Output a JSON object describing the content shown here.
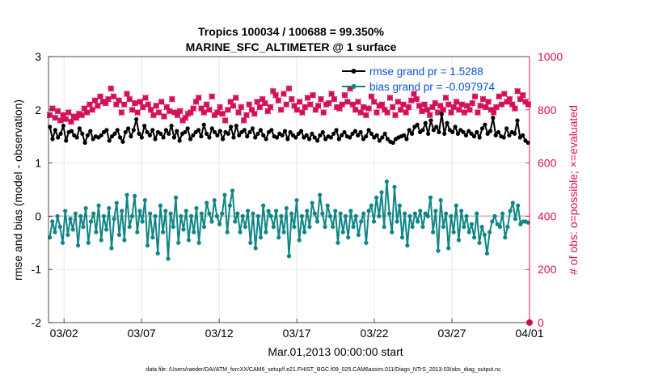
{
  "chart_data": {
    "type": "line",
    "title_line1": "Tropics 100034 / 100688 = 99.350%",
    "title_line2": "MARINE_SFC_ALTIMETER @ 1 surface",
    "xlabel": "Mar.01,2013 00:00:00 start",
    "ylabel_left": "rmse and bias (model - observation)",
    "ylabel_right": "# of obs: o=possible; ×=evaluated",
    "footer": "data file: /Users/raeder/DAI/ATM_forcXX/CAM6_setup/f.e21.FHIST_BGC.f09_025.CAM6assim.011/Diags_NTrS_2013-03/obs_diag_output.nc",
    "xlim": [
      0.0,
      31.0
    ],
    "ylim_left": [
      -2,
      3
    ],
    "ylim_right": [
      0,
      1000
    ],
    "left_ticks": [
      "-2",
      "-1",
      "0",
      "1",
      "2",
      "3"
    ],
    "right_ticks": [
      "0",
      "200",
      "400",
      "600",
      "800",
      "1000"
    ],
    "x_ticks": [
      {
        "day": 1,
        "label": "03/02"
      },
      {
        "day": 6,
        "label": "03/07"
      },
      {
        "day": 11,
        "label": "03/12"
      },
      {
        "day": 16,
        "label": "03/17"
      },
      {
        "day": 21,
        "label": "03/22"
      },
      {
        "day": 26,
        "label": "03/27"
      },
      {
        "day": 31,
        "label": "04/01"
      }
    ],
    "colors": {
      "rmse": "#000000",
      "bias": "#0f8585",
      "counts": "#d41159",
      "legend_text": "#0b4fd6",
      "zero_line": "#c8c8c8",
      "grid": "#e2e2e2",
      "right_axis": "#d41159"
    },
    "series": [
      {
        "name": "rmse grand pr = 1.5288",
        "axis": "left",
        "values": [
          1.68,
          1.45,
          1.62,
          1.48,
          1.55,
          1.7,
          1.42,
          1.58,
          1.6,
          1.52,
          1.48,
          1.65,
          1.55,
          1.38,
          1.52,
          1.6,
          1.45,
          1.5,
          1.48,
          1.52,
          1.58,
          1.62,
          1.42,
          1.5,
          1.55,
          1.62,
          1.48,
          1.4,
          1.58,
          1.65,
          1.5,
          1.62,
          1.82,
          1.55,
          1.48,
          1.7,
          1.58,
          1.52,
          1.62,
          1.45,
          1.58,
          1.55,
          1.48,
          1.62,
          1.55,
          1.7,
          1.48,
          1.6,
          1.42,
          1.55,
          1.58,
          1.65,
          1.45,
          1.52,
          1.58,
          1.62,
          1.5,
          1.72,
          1.55,
          1.48,
          1.65,
          1.58,
          1.52,
          1.6,
          1.45,
          1.58,
          1.55,
          1.68,
          1.48,
          1.7,
          1.52,
          1.58,
          1.62,
          1.5,
          1.58,
          1.65,
          1.48,
          1.55,
          1.62,
          1.52,
          1.45,
          1.58,
          1.62,
          1.5,
          1.48,
          1.55,
          1.52,
          1.6,
          1.45,
          1.58,
          1.52,
          1.48,
          1.55,
          1.6,
          1.48,
          1.52,
          1.45,
          1.55,
          1.48,
          1.42,
          1.52,
          1.58,
          1.45,
          1.5,
          1.48,
          1.55,
          1.62,
          1.45,
          1.52,
          1.58,
          1.5,
          1.48,
          1.55,
          1.6,
          1.52,
          1.58,
          1.45,
          1.5,
          1.62,
          1.55,
          1.48,
          1.52,
          1.42,
          1.48,
          1.55,
          1.45,
          1.4,
          1.38,
          1.45,
          1.48,
          1.5,
          1.52,
          1.45,
          1.62,
          1.55,
          1.68,
          1.72,
          1.58,
          1.62,
          1.75,
          1.55,
          1.8,
          1.62,
          1.68,
          1.58,
          1.92,
          1.55,
          1.75,
          1.62,
          1.58,
          1.68,
          1.55,
          1.62,
          1.58,
          1.52,
          1.6,
          1.55,
          1.5,
          1.58,
          1.48,
          1.65,
          1.72,
          1.55,
          1.6,
          1.85,
          1.52,
          1.58,
          1.5,
          1.48,
          1.65,
          1.52,
          1.58,
          1.55,
          1.8,
          1.48,
          1.52,
          1.42,
          1.38
        ]
      },
      {
        "name": "bias grand pr = -0.097974",
        "axis": "left",
        "values": [
          -0.4,
          -0.1,
          -0.3,
          0.0,
          -0.2,
          -0.5,
          0.1,
          -0.35,
          -0.05,
          -0.25,
          0.05,
          -0.55,
          0.0,
          -0.2,
          0.15,
          -0.5,
          -0.1,
          0.05,
          -0.3,
          0.2,
          -0.45,
          0.0,
          -0.25,
          0.15,
          -0.6,
          -0.05,
          0.25,
          -0.35,
          0.1,
          -0.45,
          0.4,
          -0.2,
          0.0,
          0.38,
          -0.3,
          0.1,
          -0.1,
          0.3,
          -0.55,
          0.05,
          -0.4,
          0.0,
          -0.7,
          0.2,
          -0.3,
          0.1,
          -0.8,
          0.05,
          -0.2,
          0.35,
          -0.5,
          0.0,
          -0.25,
          0.1,
          -0.45,
          0.0,
          -0.3,
          0.15,
          -0.5,
          0.05,
          -0.2,
          0.25,
          0.05,
          -0.1,
          0.3,
          0.0,
          -0.15,
          0.05,
          0.4,
          -0.3,
          0.2,
          0.48,
          -0.1,
          0.05,
          -0.3,
          0.0,
          -0.2,
          0.1,
          -0.5,
          0.05,
          -0.6,
          0.0,
          -0.4,
          0.2,
          -0.3,
          0.1,
          0.0,
          -0.2,
          0.1,
          -0.4,
          0.0,
          -0.3,
          0.15,
          -0.75,
          0.05,
          -0.2,
          0.3,
          -0.45,
          0.0,
          -0.3,
          0.1,
          -0.2,
          0.25,
          0.05,
          -0.1,
          0.4,
          0.05,
          -0.2,
          0.2,
          0.0,
          -0.2,
          0.1,
          -0.5,
          0.05,
          -0.3,
          0.0,
          -0.4,
          0.1,
          -0.2,
          0.0,
          -0.35,
          -0.1,
          0.05,
          -0.5,
          0.1,
          0.2,
          -0.1,
          0.35,
          0.0,
          0.45,
          -0.2,
          0.65,
          0.05,
          -0.3,
          0.55,
          -0.1,
          0.2,
          -0.4,
          0.05,
          -0.55,
          0.0,
          -0.2,
          0.05,
          -0.1,
          0.1,
          -0.2,
          0.05,
          0.0,
          0.35,
          -0.3,
          0.1,
          -0.65,
          0.3,
          -0.2,
          0.05,
          -0.6,
          0.0,
          -0.3,
          0.2,
          -0.45,
          0.1,
          -0.2,
          0.0,
          -0.3,
          -0.15,
          -0.4,
          0.05,
          -0.5,
          -0.2,
          -0.35,
          -0.7,
          -0.3,
          -0.1,
          0.0,
          -0.15,
          -0.2,
          0.05,
          -0.4,
          -0.2,
          0.1,
          0.25,
          -0.05,
          0.2,
          -0.15,
          -0.1,
          -0.1,
          -0.12
        ]
      },
      {
        "name": "# of obs (possible / evaluated)",
        "axis": "right",
        "values": [
          780,
          805,
          770,
          795,
          760,
          780,
          765,
          790,
          755,
          775,
          770,
          785,
          780,
          805,
          790,
          820,
          800,
          835,
          815,
          850,
          830,
          825,
          840,
          880,
          850,
          820,
          835,
          790,
          820,
          860,
          840,
          800,
          825,
          790,
          830,
          810,
          845,
          820,
          800,
          780,
          815,
          790,
          830,
          775,
          810,
          795,
          840,
          790,
          780,
          795,
          760,
          770,
          785,
          790,
          805,
          830,
          845,
          805,
          790,
          820,
          800,
          850,
          780,
          790,
          810,
          785,
          760,
          800,
          830,
          815,
          845,
          790,
          810,
          760,
          780,
          820,
          800,
          785,
          830,
          810,
          840,
          825,
          795,
          810,
          870,
          855,
          835,
          800,
          860,
          820,
          880,
          840,
          815,
          800,
          830,
          790,
          810,
          845,
          820,
          855,
          800,
          815,
          840,
          790,
          820,
          825,
          860,
          840,
          810,
          805,
          820,
          855,
          830,
          880,
          820,
          800,
          830,
          790,
          810,
          780,
          805,
          850,
          830,
          790,
          815,
          820,
          800,
          790,
          845,
          810,
          780,
          830,
          800,
          820,
          790,
          810,
          835,
          860,
          840,
          815,
          795,
          820,
          800,
          780,
          810,
          825,
          790,
          815,
          800,
          845,
          820,
          790,
          810,
          830,
          800,
          820,
          790,
          815,
          800,
          825,
          850,
          790,
          815,
          840,
          810,
          830,
          800,
          790,
          810,
          850,
          820,
          860,
          830,
          840,
          820,
          805,
          870,
          840,
          855,
          830,
          820
        ]
      }
    ],
    "endpoint_count": 0
  }
}
